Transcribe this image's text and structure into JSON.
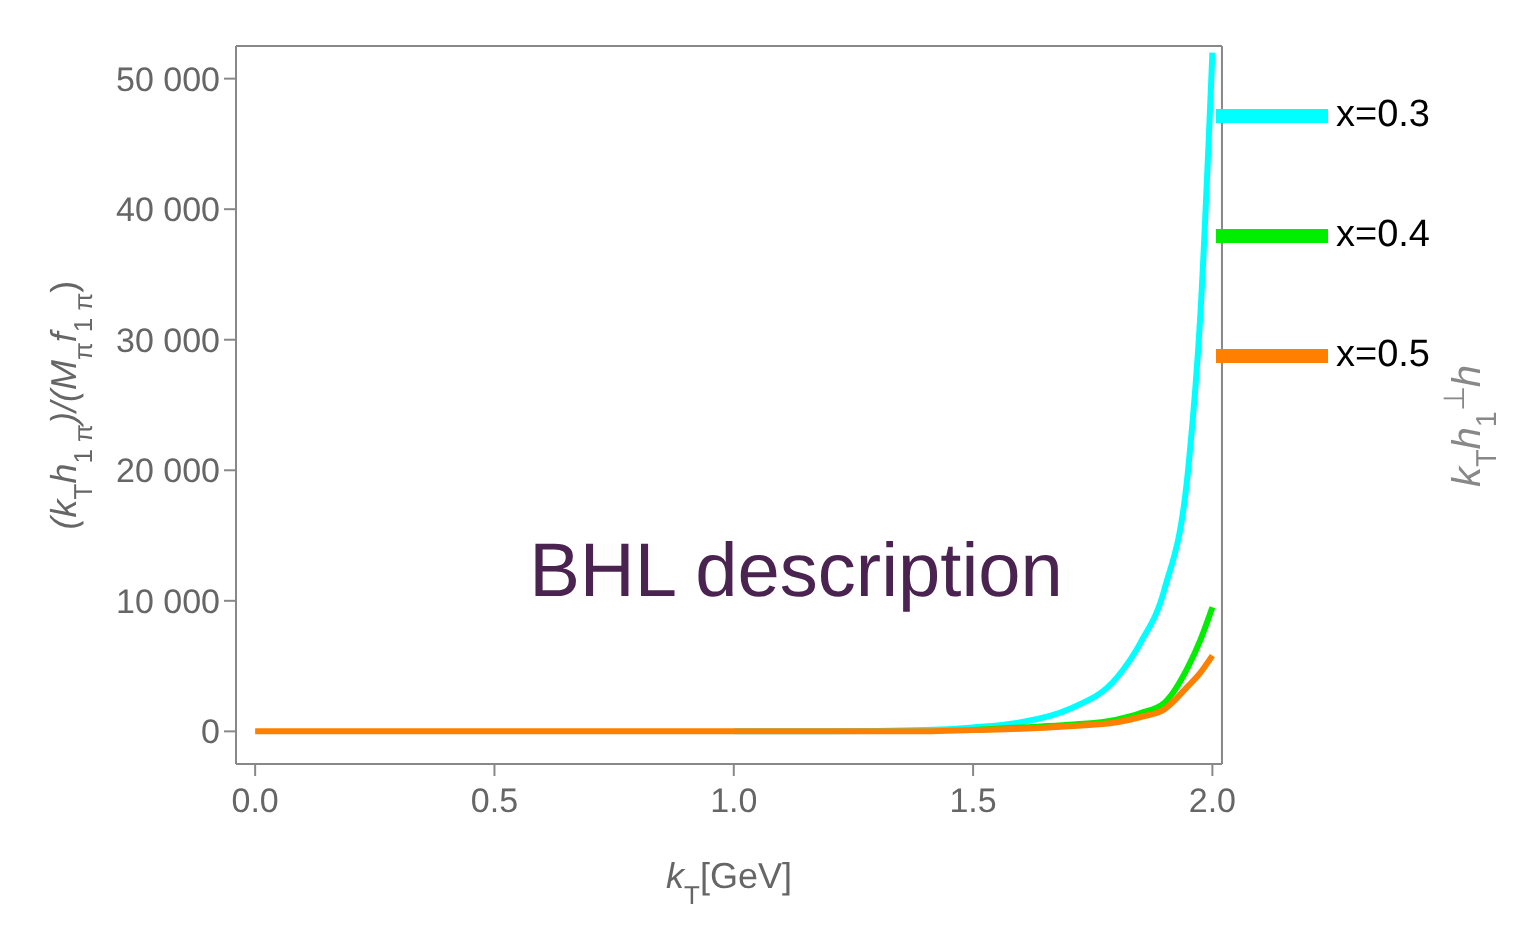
{
  "chart_data": {
    "type": "line",
    "xlabel": "k$_{T}$[GeV]",
    "ylabel": "(k$_{T}$h$_{1 π}$)/(M$_{π}$f$_{1 π}$)",
    "x": [
      0,
      0.5,
      1.0,
      1.2,
      1.4,
      1.5,
      1.6,
      1.7,
      1.8,
      1.85,
      1.9,
      1.95,
      1.975,
      2.0
    ],
    "xlim": [
      -0.04,
      2.02
    ],
    "xticks": [
      {
        "value": 0,
        "label": "0.0"
      },
      0.5,
      {
        "value": 1,
        "label": "1.0"
      },
      1.5,
      {
        "value": 2,
        "label": "2.0"
      }
    ],
    "ylim": [
      -2500,
      52500
    ],
    "yticks": [
      0,
      {
        "value": 10000,
        "label": "10 000"
      },
      {
        "value": 20000,
        "label": "20 000"
      },
      {
        "value": 30000,
        "label": "30 000"
      },
      {
        "value": 40000,
        "label": "40 000"
      },
      {
        "value": 50000,
        "label": "50 000"
      }
    ],
    "series": [
      {
        "name": "x=0.3",
        "color": "#00ffff",
        "values": [
          null,
          null,
          0,
          0,
          100,
          300,
          700,
          1700,
          4100,
          6800,
          10900,
          20300,
          32000,
          52000
        ]
      },
      {
        "name": "x=0.4",
        "color": "#00ee00",
        "values": [
          null,
          null,
          null,
          null,
          null,
          100,
          300,
          500,
          900,
          1400,
          2200,
          5000,
          7000,
          9500
        ]
      },
      {
        "name": "x=0.5",
        "color": "#ff8000",
        "values": [
          0,
          0,
          0,
          0,
          0,
          100,
          200,
          400,
          700,
          1100,
          1700,
          3500,
          4500,
          5800
        ]
      }
    ],
    "annotations": [
      "BHL description",
      "k$_{T}$h$_{1}$$^{⊥}$h"
    ],
    "legend": "top right",
    "marker": "none",
    "line_style": "solid"
  }
}
